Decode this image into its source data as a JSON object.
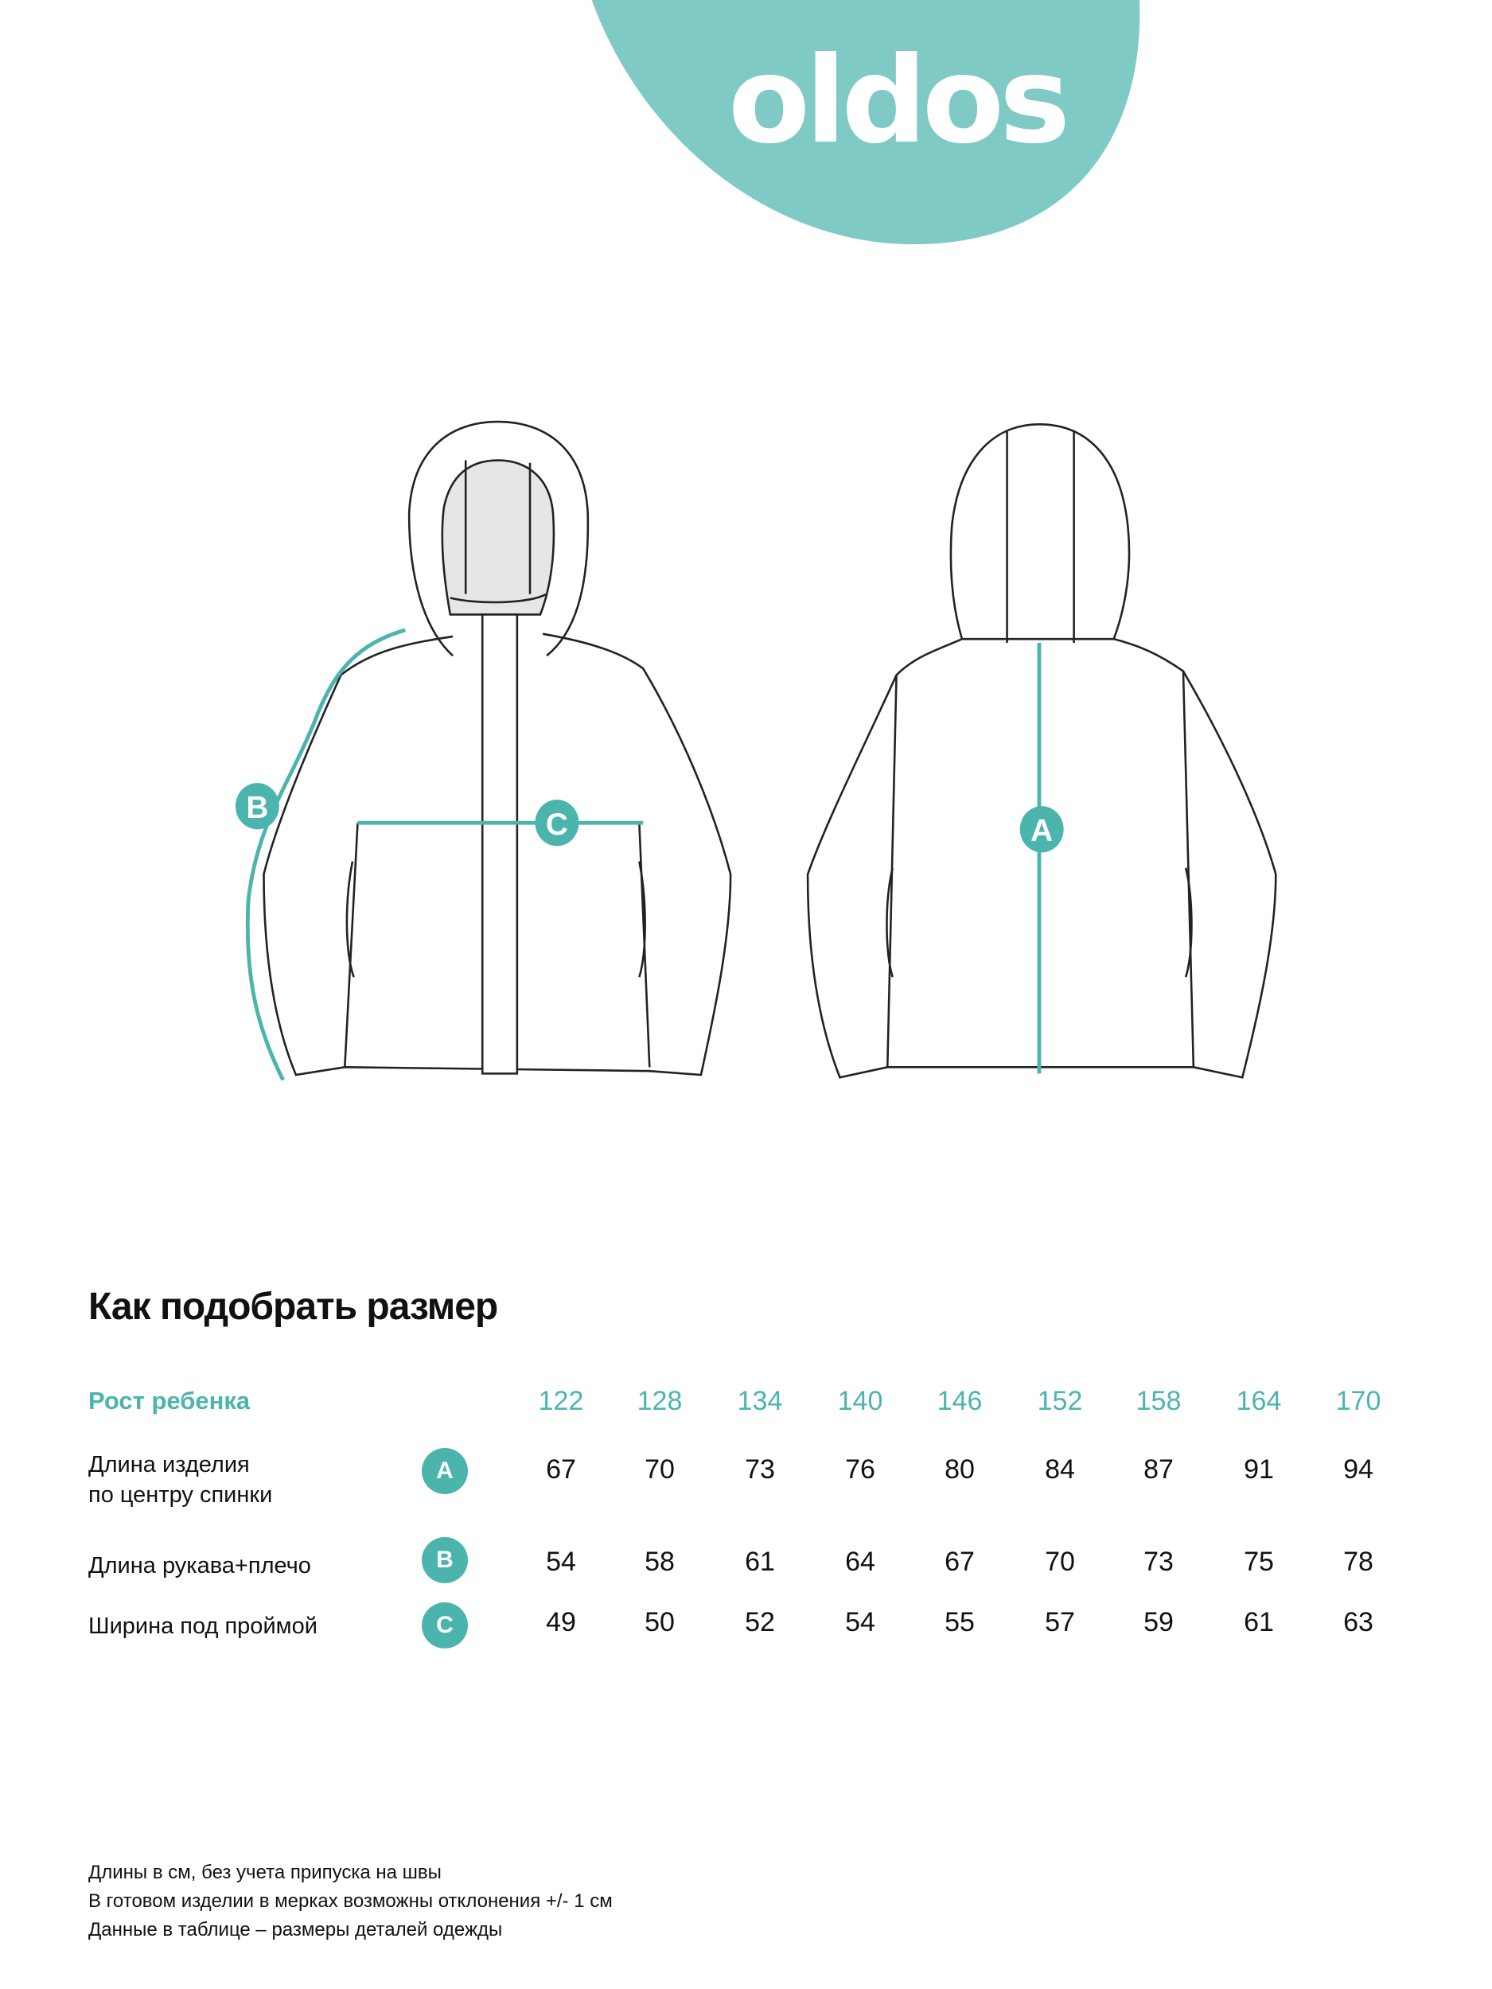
{
  "brand": {
    "logo_text": "oldos",
    "color": "#80cac6"
  },
  "accent_color": "#4bb5ad",
  "diagram": {
    "labels": {
      "a": "A",
      "b": "B",
      "c": "C"
    }
  },
  "title": "Как подобрать размер",
  "table": {
    "header_label": "Рост ребенка",
    "sizes": [
      "122",
      "128",
      "134",
      "140",
      "146",
      "152",
      "158",
      "164",
      "170"
    ],
    "rows": [
      {
        "label_line1": "Длина изделия",
        "label_line2": "по центру спинки",
        "badge": "A",
        "values": [
          "67",
          "70",
          "73",
          "76",
          "80",
          "84",
          "87",
          "91",
          "94"
        ]
      },
      {
        "label_line1": "Длина рукава+плечо",
        "badge": "B",
        "values": [
          "54",
          "58",
          "61",
          "64",
          "67",
          "70",
          "73",
          "75",
          "78"
        ]
      },
      {
        "label_line1": "Ширина под проймой",
        "badge": "C",
        "values": [
          "49",
          "50",
          "52",
          "54",
          "55",
          "57",
          "59",
          "61",
          "63"
        ]
      }
    ]
  },
  "notes": [
    "Длины в см, без учета припуска на швы",
    "В готовом изделии в мерках возможны отклонения +/- 1 см",
    "Данные в таблице – размеры деталей одежды"
  ]
}
